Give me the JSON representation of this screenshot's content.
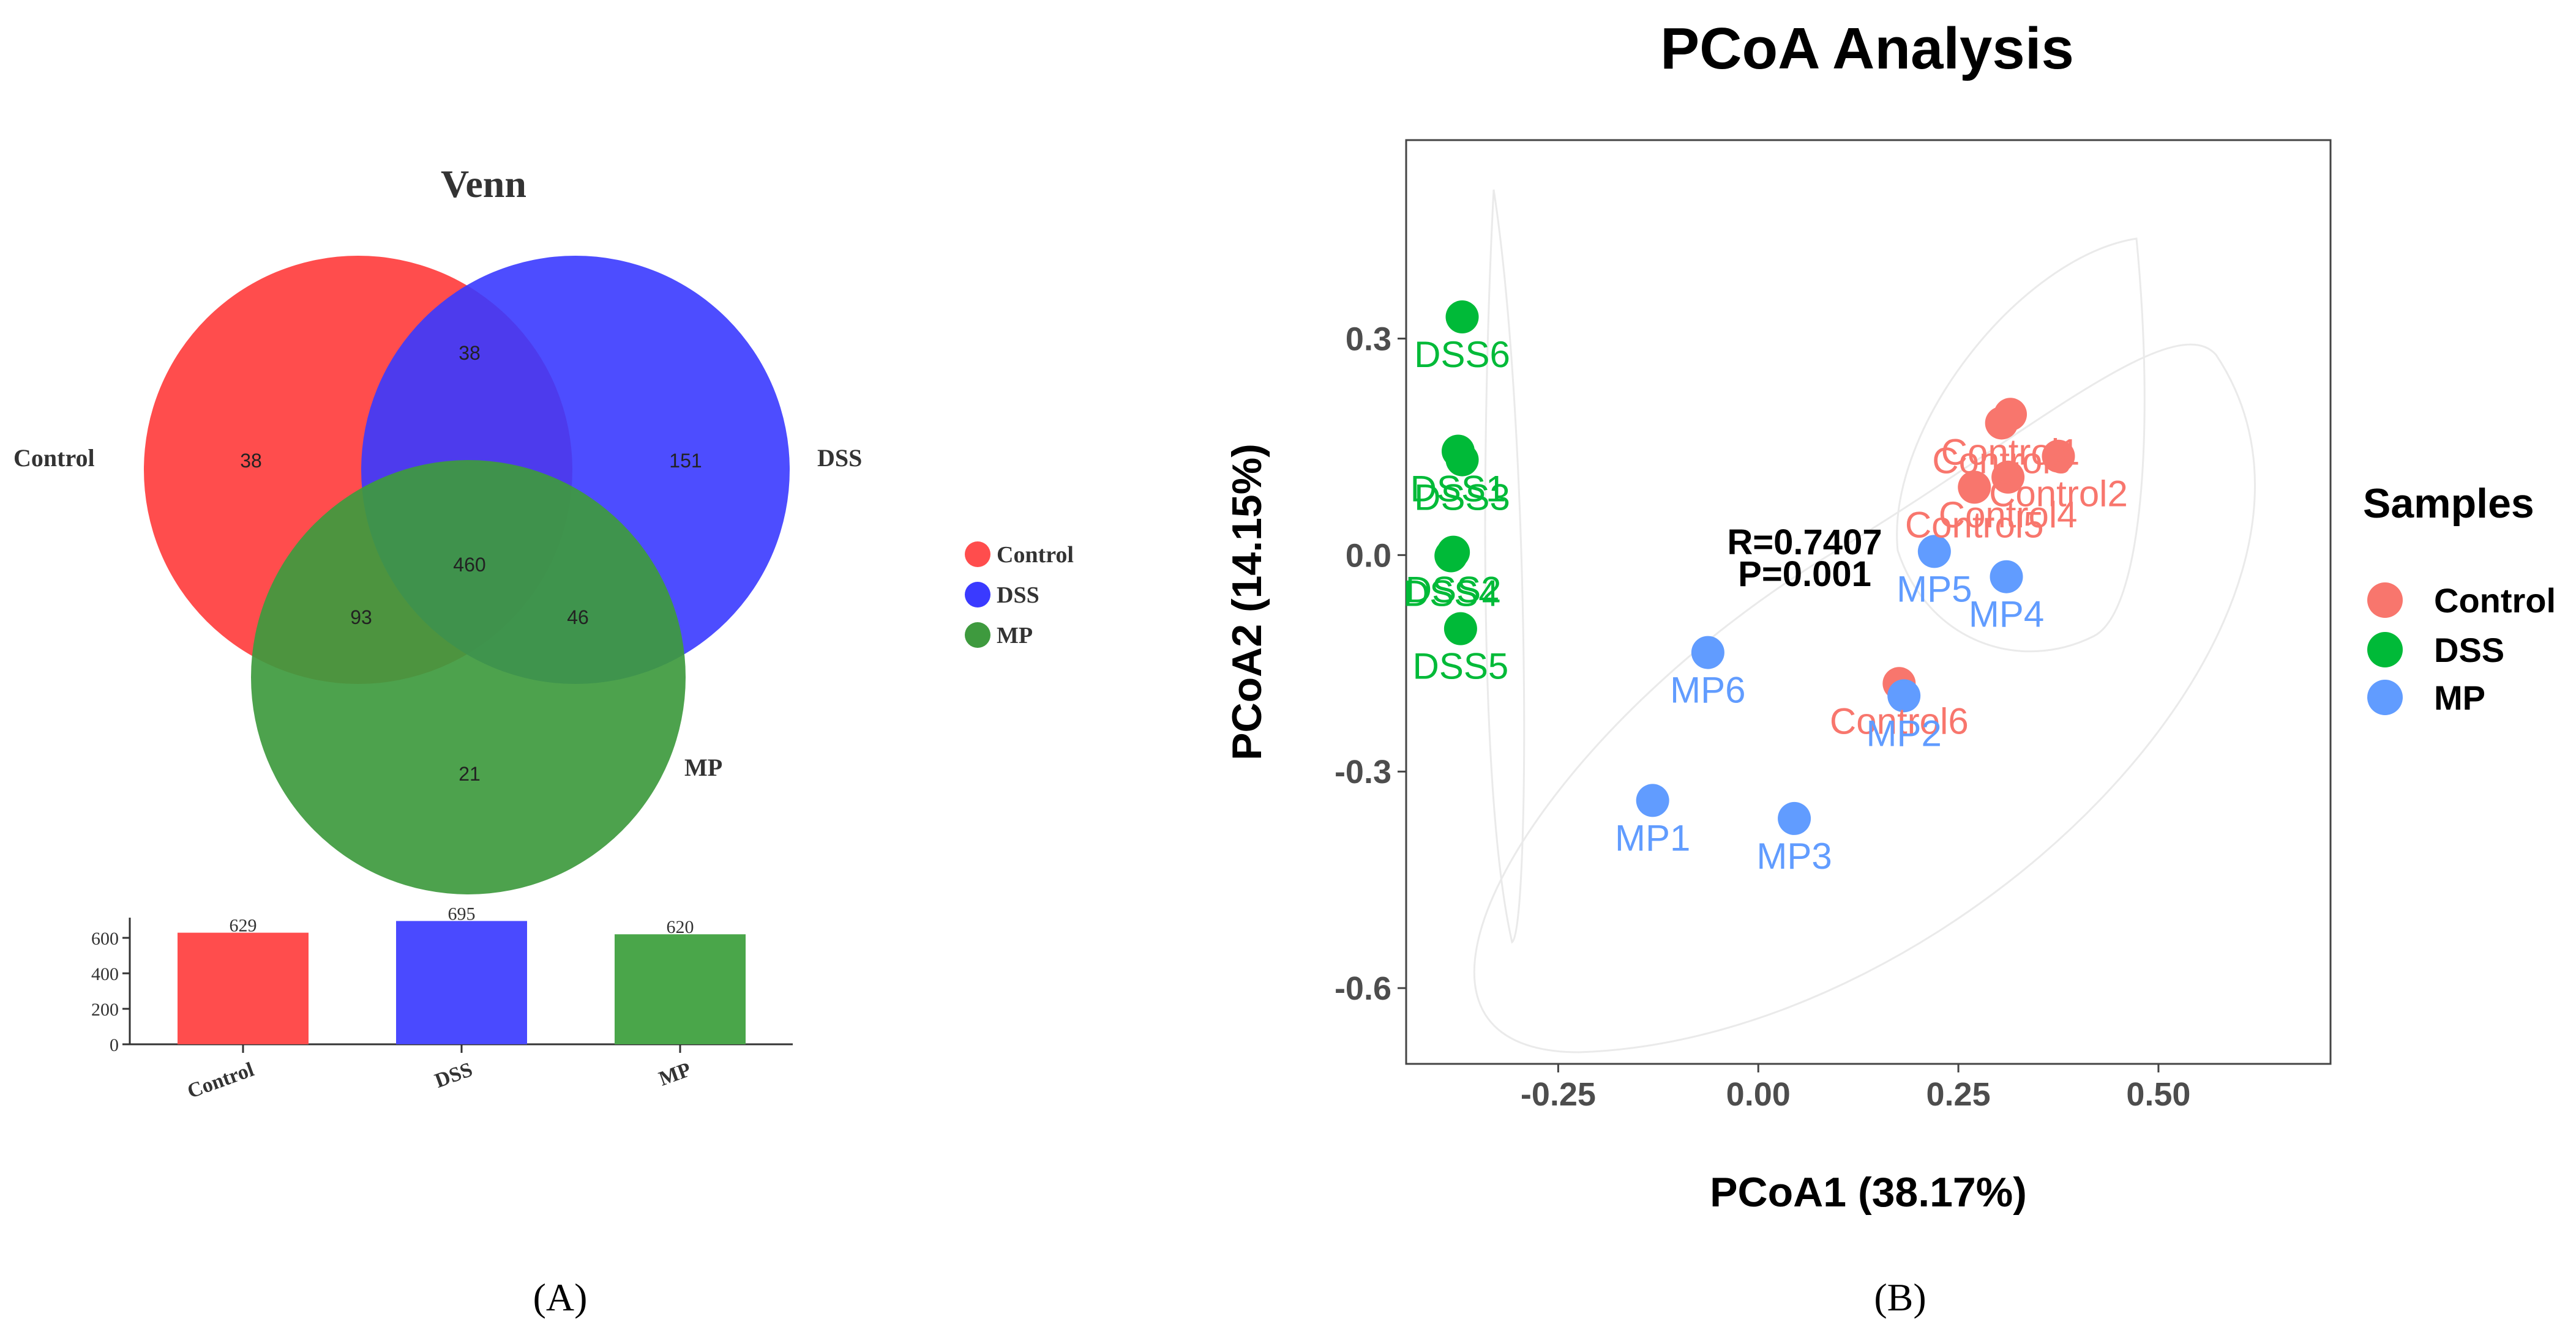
{
  "panels": {
    "a_label": "(A)",
    "b_label": "(B)"
  },
  "colors": {
    "control": "#ff4d4d",
    "dss": "#4a4aff",
    "mp": "#4aa64a",
    "pcoa_control": "#f8766d",
    "pcoa_dss": "#00ba38",
    "pcoa_mp": "#619cff"
  },
  "chart_data": [
    {
      "type": "venn",
      "title": "Venn",
      "sets": [
        {
          "name": "Control",
          "color": "#ff4d4d"
        },
        {
          "name": "DSS",
          "color": "#4a4aff"
        },
        {
          "name": "MP",
          "color": "#4aa64a"
        }
      ],
      "regions": {
        "control_only": "38",
        "dss_only": "151",
        "mp_only": "21",
        "control_dss": "38",
        "control_mp": "93",
        "dss_mp": "46",
        "all": "460"
      },
      "legend": [
        "Control",
        "DSS",
        "MP"
      ]
    },
    {
      "type": "bar",
      "categories": [
        "Control",
        "DSS",
        "MP"
      ],
      "values": [
        629,
        695,
        620
      ],
      "colors": [
        "#ff4d4d",
        "#4a4aff",
        "#4aa64a"
      ],
      "ylim": [
        0,
        700
      ],
      "yticks": [
        "0",
        "200",
        "400",
        "600"
      ]
    },
    {
      "type": "scatter",
      "title": "PCoA Analysis",
      "xlabel": "PCoA1 (38.17%)",
      "ylabel": "PCoA2 (14.15%)",
      "xlim": [
        -0.44,
        0.715
      ],
      "ylim": [
        -0.705,
        0.575
      ],
      "xticks": [
        "-0.25",
        "0.00",
        "0.25",
        "0.50"
      ],
      "yticks": [
        "0.3",
        "0.0",
        "-0.3",
        "-0.6"
      ],
      "annotation": [
        "R=0.7407",
        "P=0.001"
      ],
      "legend_title": "Samples",
      "legend": [
        "Control",
        "DSS",
        "MP"
      ],
      "series": [
        {
          "name": "Control",
          "color": "#f8766d",
          "points": [
            {
              "label": "Control1",
              "x": 0.315,
              "y": 0.195
            },
            {
              "label": "Control2",
              "x": 0.375,
              "y": 0.137
            },
            {
              "label": "Control3",
              "x": 0.304,
              "y": 0.183
            },
            {
              "label": "Control4",
              "x": 0.312,
              "y": 0.108
            },
            {
              "label": "Control5",
              "x": 0.27,
              "y": 0.094
            },
            {
              "label": "Control6",
              "x": 0.176,
              "y": -0.178
            }
          ]
        },
        {
          "name": "DSS",
          "color": "#00ba38",
          "points": [
            {
              "label": "DSS1",
              "x": -0.375,
              "y": 0.144
            },
            {
              "label": "DSS2",
              "x": -0.381,
              "y": 0.004
            },
            {
              "label": "DSS3",
              "x": -0.37,
              "y": 0.132
            },
            {
              "label": "DSS4",
              "x": -0.384,
              "y": -0.001
            },
            {
              "label": "DSS5",
              "x": -0.372,
              "y": -0.102
            },
            {
              "label": "DSS6",
              "x": -0.37,
              "y": 0.33
            }
          ]
        },
        {
          "name": "MP",
          "color": "#619cff",
          "points": [
            {
              "label": "MP1",
              "x": -0.132,
              "y": -0.34
            },
            {
              "label": "MP2",
              "x": 0.182,
              "y": -0.195
            },
            {
              "label": "MP3",
              "x": 0.045,
              "y": -0.365
            },
            {
              "label": "MP4",
              "x": 0.31,
              "y": -0.03
            },
            {
              "label": "MP5",
              "x": 0.22,
              "y": 0.005
            },
            {
              "label": "MP6",
              "x": -0.063,
              "y": -0.135
            }
          ]
        }
      ]
    }
  ]
}
